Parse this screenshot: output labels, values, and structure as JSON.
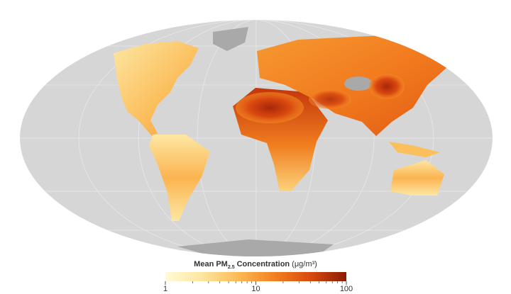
{
  "colorbar": {
    "title": "Mean PM",
    "title_subscript": "2.5",
    "title_rest": "Concentration",
    "units": "(μg/m³)",
    "scale": "log",
    "lim": [
      1,
      100
    ],
    "ticks": [
      1,
      10,
      100
    ],
    "minor_ticks": [
      2,
      3,
      4,
      5,
      6,
      7,
      8,
      9,
      20,
      30,
      40,
      50,
      60,
      70,
      80,
      90
    ],
    "colors": [
      "#fffbd6",
      "#fde6a0",
      "#fbbb55",
      "#f38120",
      "#d94a0e",
      "#8a1c04"
    ]
  }
}
